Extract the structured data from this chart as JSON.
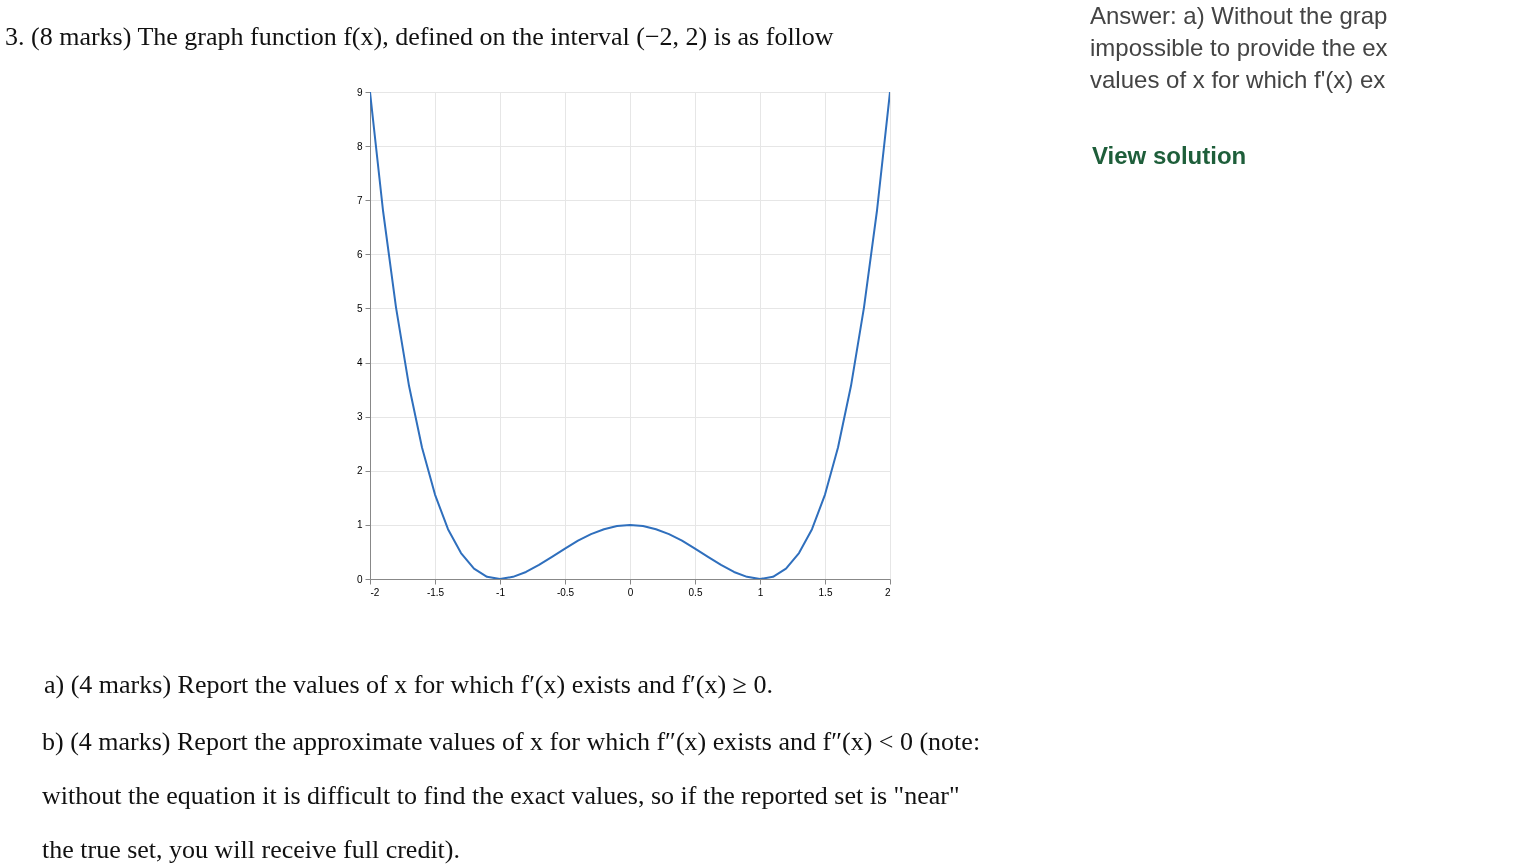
{
  "chart_data": {
    "type": "line",
    "title": "3. (8 marks) The graph function f(x), defined on the interval (−2, 2) is as follow",
    "x": [
      -2,
      -1.9,
      -1.8,
      -1.7,
      -1.6,
      -1.5,
      -1.4,
      -1.3,
      -1.2,
      -1.1,
      -1,
      -0.9,
      -0.8,
      -0.7,
      -0.6,
      -0.5,
      -0.4,
      -0.3,
      -0.2,
      -0.1,
      0,
      0.1,
      0.2,
      0.3,
      0.4,
      0.5,
      0.6,
      0.7,
      0.8,
      0.9,
      1,
      1.1,
      1.2,
      1.3,
      1.4,
      1.5,
      1.6,
      1.7,
      1.8,
      1.9,
      2
    ],
    "series": [
      {
        "color": "#2f6fbd",
        "values": [
          9,
          6.81,
          5.02,
          3.57,
          2.43,
          1.56,
          0.92,
          0.48,
          0.19,
          0.04,
          0,
          0.04,
          0.13,
          0.26,
          0.41,
          0.56,
          0.71,
          0.83,
          0.92,
          0.98,
          1,
          0.98,
          0.92,
          0.83,
          0.71,
          0.56,
          0.41,
          0.26,
          0.13,
          0.04,
          0,
          0.04,
          0.19,
          0.48,
          0.92,
          1.56,
          2.43,
          3.57,
          5.02,
          6.81,
          9
        ]
      }
    ],
    "xlim": [
      -2,
      2
    ],
    "xticks": [
      -2,
      -1.5,
      -1,
      -0.5,
      0,
      0.5,
      1,
      1.5,
      2
    ],
    "ylim": [
      0,
      9
    ],
    "yticks": [
      0,
      1,
      2,
      3,
      4,
      5,
      6,
      7,
      8,
      9
    ],
    "grid": true,
    "marker": "none",
    "line_style": "solid",
    "annotations": [
      "a) (4 marks) Report the values of x for which f′(x) exists and f′(x) ≥ 0.",
      "b) (4 marks) Report the approximate values of x for which f″(x) exists and f″(x) < 0 (note:\nwithout the equation it is difficult to find the exact values, so if the reported set is \"near\"\nthe true set, you will receive full credit).",
      "Answer: a) Without the grap\nimpossible to provide the ex\nvalues of x for which f'(x) ex",
      "View solution"
    ]
  }
}
